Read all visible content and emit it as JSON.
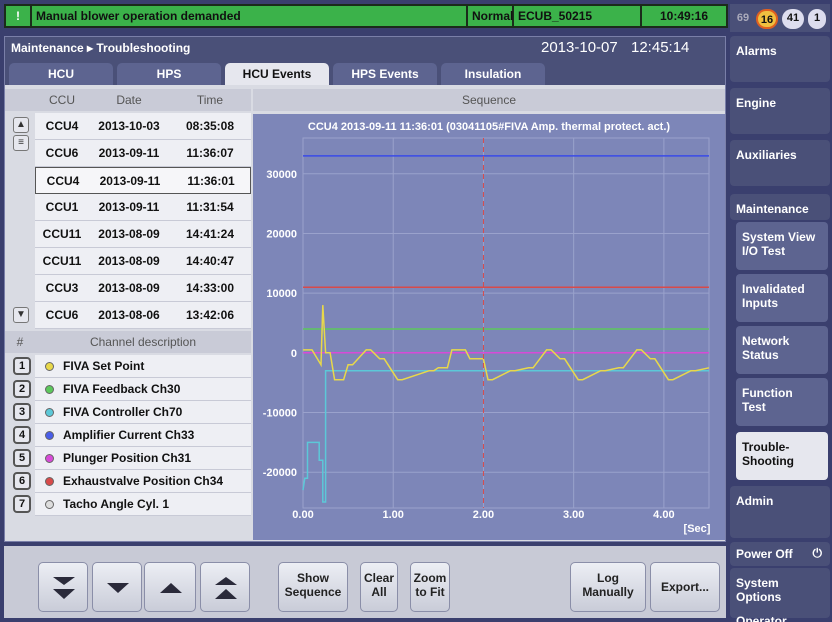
{
  "alarm_bar": {
    "icon": "!",
    "message": "Manual blower operation demanded",
    "mode": "Normal",
    "unit": "ECUB_50215",
    "time": "10:49:16"
  },
  "counters": [
    "69",
    "16",
    "41",
    "1"
  ],
  "breadcrumb": "Maintenance ▸ Troubleshooting",
  "header_date": "2013-10-07",
  "header_time": "12:45:14",
  "tabs": [
    "HCU",
    "HPS",
    "HCU Events",
    "HPS Events",
    "Insulation"
  ],
  "events": {
    "headers": [
      "CCU",
      "Date",
      "Time"
    ],
    "rows": [
      [
        "CCU4",
        "2013-10-03",
        "08:35:08"
      ],
      [
        "CCU6",
        "2013-09-11",
        "11:36:07"
      ],
      [
        "CCU4",
        "2013-09-11",
        "11:36:01"
      ],
      [
        "CCU1",
        "2013-09-11",
        "11:31:54"
      ],
      [
        "CCU11",
        "2013-08-09",
        "14:41:24"
      ],
      [
        "CCU11",
        "2013-08-09",
        "14:40:47"
      ],
      [
        "CCU3",
        "2013-08-09",
        "14:33:00"
      ],
      [
        "CCU6",
        "2013-08-06",
        "13:42:06"
      ]
    ]
  },
  "channels": {
    "header_num": "#",
    "header_desc": "Channel description",
    "items": [
      {
        "num": "1",
        "label": "FIVA Set Point",
        "color": "#e8d84a"
      },
      {
        "num": "2",
        "label": "FIVA Feedback Ch30",
        "color": "#5cc85c"
      },
      {
        "num": "3",
        "label": "FIVA Controller Ch70",
        "color": "#5cc8d8"
      },
      {
        "num": "4",
        "label": "Amplifier Current Ch33",
        "color": "#4a5ee8"
      },
      {
        "num": "5",
        "label": "Plunger Position Ch31",
        "color": "#d84ad8"
      },
      {
        "num": "6",
        "label": "Exhaustvalve Position Ch34",
        "color": "#d84a4a"
      },
      {
        "num": "7",
        "label": "Tacho Angle Cyl. 1",
        "color": "#dddddd"
      }
    ]
  },
  "sequence_header": "Sequence",
  "chart_data": {
    "type": "line",
    "title": "CCU4 2013-09-11 11:36:01 (03041105#FIVA Amp. thermal protect. act.)",
    "xlabel": "[Sec]",
    "x_ticks": [
      "0.00",
      "1.00",
      "2.00",
      "3.00",
      "4.00"
    ],
    "y_ticks": [
      "30000",
      "20000",
      "10000",
      "0",
      "-10000",
      "-20000"
    ],
    "xlim": [
      0,
      4.5
    ],
    "ylim": [
      -26000,
      36000
    ],
    "cursor_x": 2.0,
    "series": [
      {
        "color": "#3a4ae8",
        "x": [
          0,
          4.5
        ],
        "y": [
          33000,
          33000
        ]
      },
      {
        "color": "#d84a4a",
        "x": [
          0,
          4.5
        ],
        "y": [
          11000,
          11000
        ]
      },
      {
        "color": "#5cc85c",
        "x": [
          0,
          4.5
        ],
        "y": [
          4000,
          4000
        ]
      },
      {
        "color": "#d84ad8",
        "x": [
          0,
          4.5
        ],
        "y": [
          0,
          0
        ]
      },
      {
        "color": "#5cc8d8",
        "x": [
          0,
          0.02,
          0.05,
          0.05,
          0.18,
          0.18,
          0.2,
          0.22,
          0.22,
          0.25,
          0.25,
          4.5
        ],
        "y": [
          -23000,
          -21000,
          -21000,
          -15000,
          -15000,
          -18000,
          -18000,
          -18000,
          -25000,
          -25000,
          -3000,
          -3000
        ]
      },
      {
        "color": "#e8d84a",
        "x": [
          0,
          0.1,
          0.2,
          0.22,
          0.25,
          0.3,
          0.35,
          0.45,
          0.5,
          0.55,
          0.7,
          0.75,
          0.85,
          0.9,
          1.05,
          1.1,
          1.4,
          1.45,
          1.5,
          1.6,
          1.65,
          1.8,
          1.85,
          2.0,
          2.05,
          2.1,
          2.3,
          2.35,
          2.5,
          2.55,
          2.7,
          2.75,
          2.85,
          2.9,
          3.05,
          3.1,
          3.3,
          3.35,
          3.5,
          3.55,
          3.7,
          3.75,
          3.85,
          3.9,
          4.05,
          4.1,
          4.3,
          4.35,
          4.5
        ],
        "y": [
          500,
          500,
          -2000,
          8000,
          0,
          0,
          -4500,
          -4500,
          -2000,
          -2000,
          500,
          500,
          -1000,
          -1000,
          -4500,
          -4500,
          -3000,
          -3000,
          -2500,
          -2500,
          500,
          500,
          -1000,
          -1000,
          -4500,
          -4500,
          -3000,
          -3000,
          -2500,
          -2500,
          500,
          500,
          -1000,
          -1000,
          -4500,
          -4500,
          -3000,
          -3000,
          -2500,
          -2500,
          500,
          500,
          -1000,
          -1000,
          -4500,
          -4500,
          -3000,
          -3000,
          -2500
        ]
      }
    ]
  },
  "bottom_buttons": {
    "show_sequence": "Show\nSequence",
    "clear_all": "Clear\nAll",
    "zoom_to_fit": "Zoom\nto Fit",
    "log_manually": "Log\nManually",
    "export": "Export..."
  },
  "nav": {
    "alarms": "Alarms",
    "engine": "Engine",
    "auxiliaries": "Auxiliaries",
    "maintenance": "Maintenance",
    "system_view": "System View\nI/O Test",
    "invalidated": "Invalidated\nInputs",
    "network": "Network\nStatus",
    "function_test": "Function\nTest",
    "troubleshooting": "Trouble-\nShooting",
    "admin": "Admin",
    "power_off": "Power Off",
    "system_options": "System Options",
    "operator": "Operator"
  }
}
